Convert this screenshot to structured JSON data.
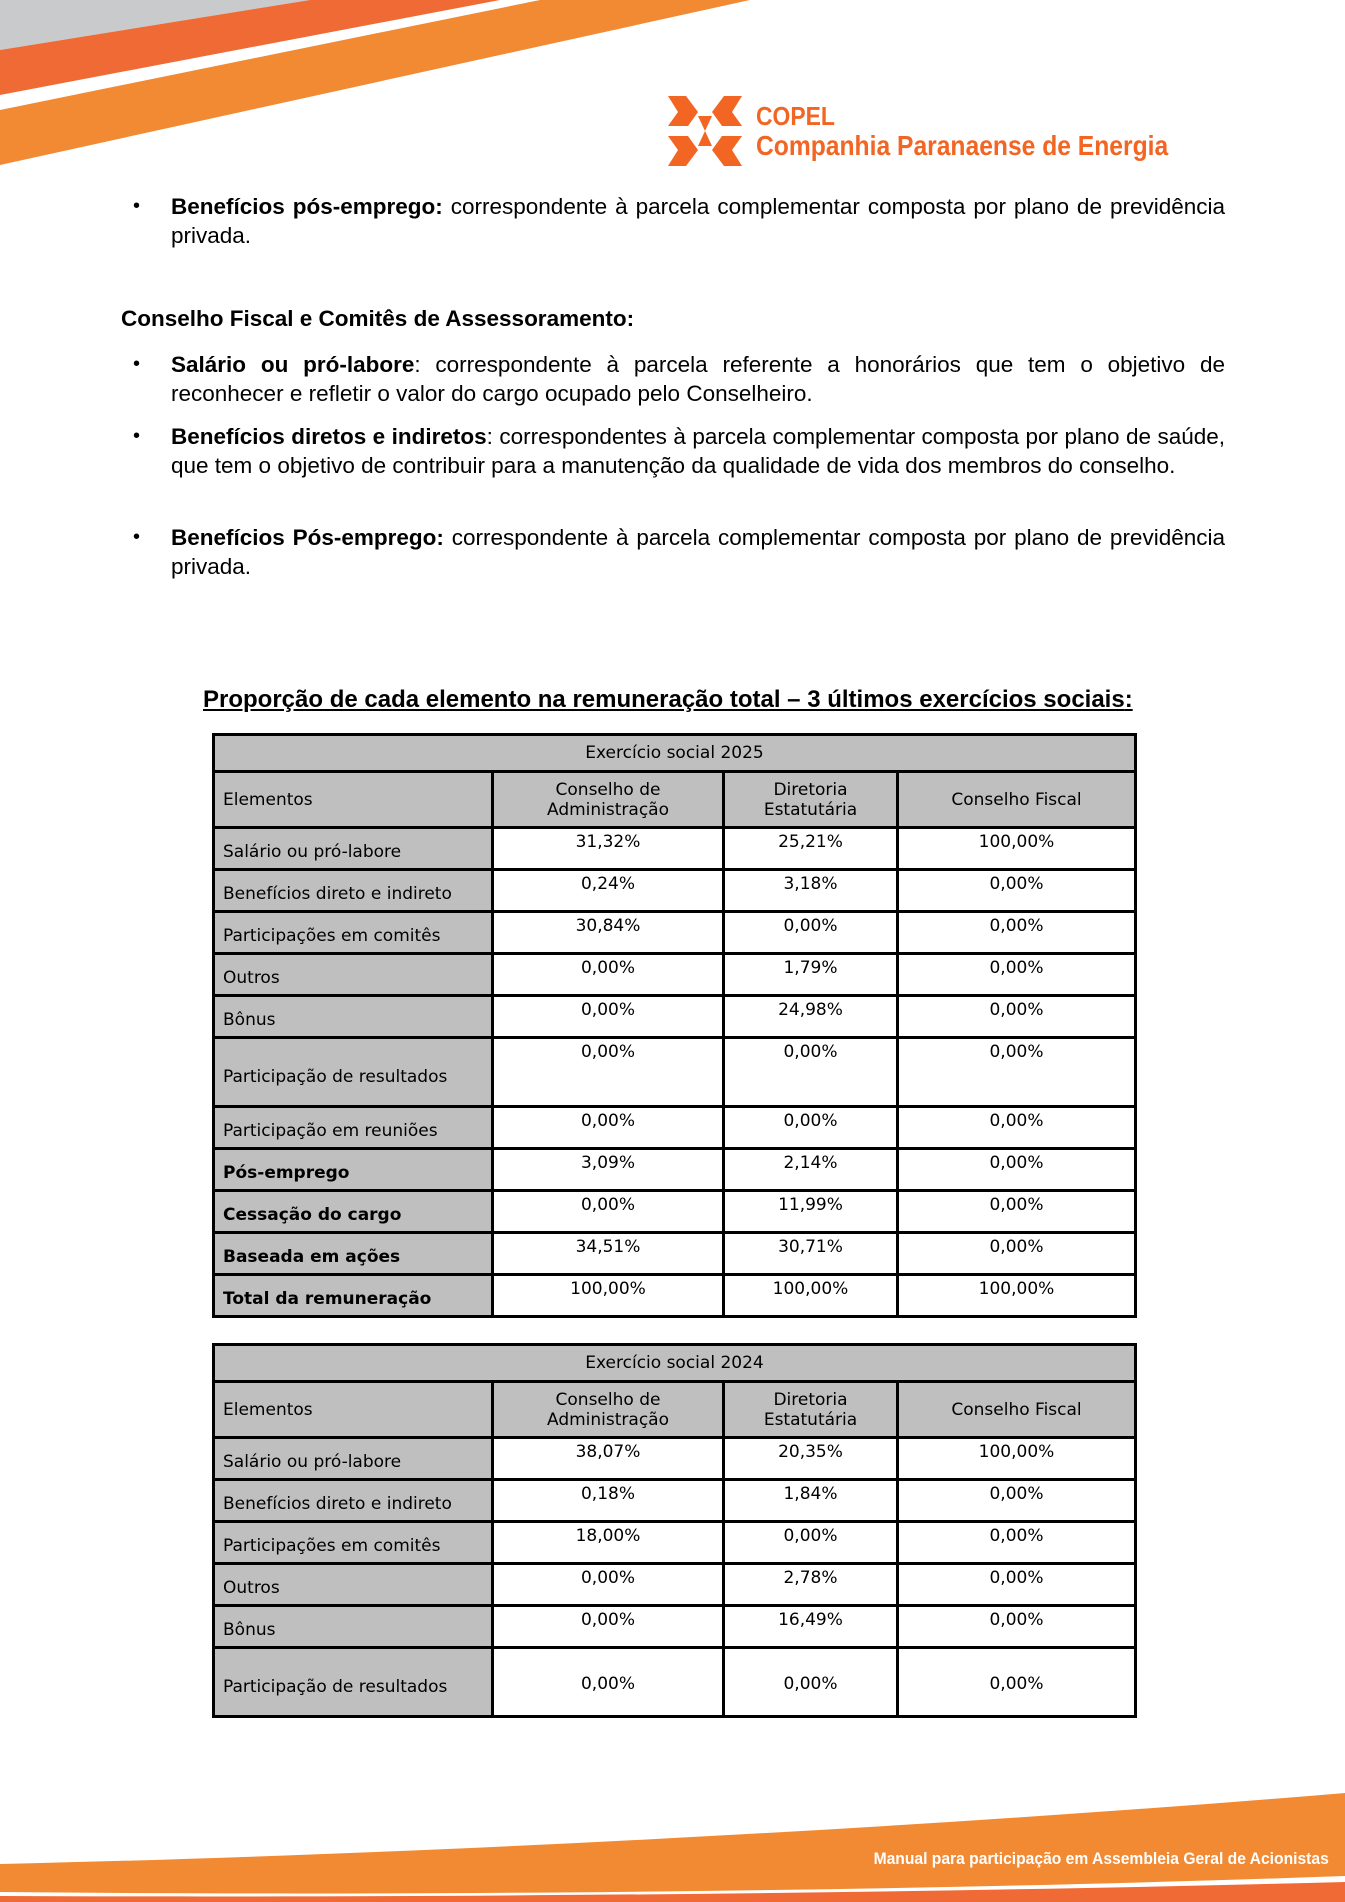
{
  "brand": {
    "name": "COPEL",
    "full_name": "Companhia Paranaense de Energia",
    "color": "#f26522",
    "accent": "#f28a33"
  },
  "intro_bullets": [
    {
      "bold": "Benefícios pós-emprego:",
      "text": " correspondente à parcela complementar composta por plano de previdência privada."
    }
  ],
  "section_heading": "Conselho Fiscal e Comitês de Assessoramento:",
  "section_bullets": [
    {
      "bold": "Salário ou pró-labore",
      "text": ": correspondente à parcela referente a honorários que tem o objetivo de reconhecer e refletir o valor do cargo ocupado pelo Conselheiro."
    },
    {
      "bold": "Benefícios diretos e indiretos",
      "text": ": correspondentes à parcela complementar composta por plano de saúde, que tem o objetivo de contribuir para a manutenção da qualidade de vida dos membros do conselho."
    },
    {
      "bold": "Benefícios Pós-emprego:",
      "text": " correspondente à parcela complementar composta por plano de previdência privada."
    }
  ],
  "tables_title": "Proporção de cada elemento na remuneração total – 3 últimos exercícios sociais",
  "tables_title_suffix": ":",
  "columns": [
    "Elementos",
    "Conselho de Administração",
    "Diretoria Estatutária",
    "Conselho Fiscal"
  ],
  "tables": [
    {
      "title": "Exercício social 2025",
      "rows": [
        {
          "label": "Salário ou pró-labore",
          "values": [
            "31,32%",
            "25,21%",
            "100,00%"
          ]
        },
        {
          "label": "Benefícios direto e indireto",
          "values": [
            "0,24%",
            "3,18%",
            "0,00%"
          ]
        },
        {
          "label": "Participações em comitês",
          "values": [
            "30,84%",
            "0,00%",
            "0,00%"
          ]
        },
        {
          "label": "Outros",
          "values": [
            "0,00%",
            "1,79%",
            "0,00%"
          ]
        },
        {
          "label": "Bônus",
          "values": [
            "0,00%",
            "24,98%",
            "0,00%"
          ]
        },
        {
          "label": "Participação de resultados",
          "values": [
            "0,00%",
            "0,00%",
            "0,00%"
          ]
        },
        {
          "label": "Participação em reuniões",
          "values": [
            "0,00%",
            "0,00%",
            "0,00%"
          ]
        },
        {
          "label": "Pós-emprego",
          "bold": true,
          "values": [
            "3,09%",
            "2,14%",
            "0,00%"
          ]
        },
        {
          "label": "Cessação do cargo",
          "bold": true,
          "values": [
            "0,00%",
            "11,99%",
            "0,00%"
          ]
        },
        {
          "label": "Baseada em ações",
          "bold": true,
          "values": [
            "34,51%",
            "30,71%",
            "0,00%"
          ]
        },
        {
          "label": "Total da remuneração",
          "bold": true,
          "values": [
            "100,00%",
            "100,00%",
            "100,00%"
          ]
        }
      ]
    },
    {
      "title": "Exercício social 2024",
      "rows": [
        {
          "label": "Salário ou pró-labore",
          "values": [
            "38,07%",
            "20,35%",
            "100,00%"
          ]
        },
        {
          "label": "Benefícios direto e indireto",
          "values": [
            "0,18%",
            "1,84%",
            "0,00%"
          ]
        },
        {
          "label": "Participações em comitês",
          "values": [
            "18,00%",
            "0,00%",
            "0,00%"
          ]
        },
        {
          "label": "Outros",
          "values": [
            "0,00%",
            "2,78%",
            "0,00%"
          ]
        },
        {
          "label": "Bônus",
          "values": [
            "0,00%",
            "16,49%",
            "0,00%"
          ]
        },
        {
          "label": "Participação de resultados",
          "values": [
            "0,00%",
            "0,00%",
            "0,00%"
          ]
        }
      ]
    }
  ],
  "footer": "Manual para participação em Assembleia Geral de Acionistas"
}
